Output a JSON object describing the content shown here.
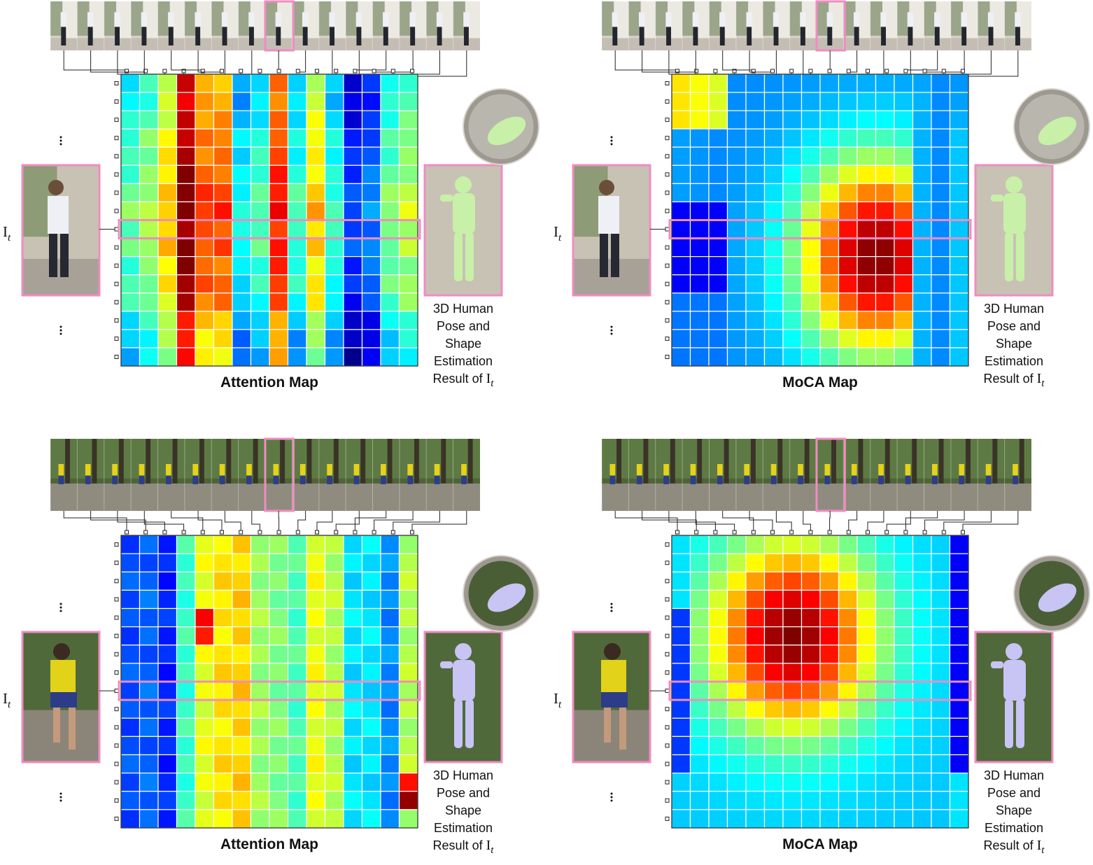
{
  "panels": [
    {
      "id": "top-left",
      "title": "Attention Map",
      "frame_label": "I",
      "frame_subscript": "t",
      "result_lines": [
        "3D Human",
        "Pose and",
        "Shape",
        "Estimation",
        "Result of"
      ],
      "result_tail": "I",
      "result_tail_sub": "t",
      "scene": "building",
      "mesh_color": "#c8f0a8",
      "highlight_row": 8,
      "highlight_frame": 8
    },
    {
      "id": "top-right",
      "title": "MoCA Map",
      "frame_label": "I",
      "frame_subscript": "t",
      "result_lines": [
        "3D Human",
        "Pose and",
        "Shape",
        "Estimation",
        "Result of"
      ],
      "result_tail": "I",
      "result_tail_sub": "t",
      "scene": "building",
      "mesh_color": "#c8f0a8",
      "highlight_row": 8,
      "highlight_frame": 8
    },
    {
      "id": "bottom-left",
      "title": "Attention Map",
      "frame_label": "I",
      "frame_subscript": "t",
      "result_lines": [
        "3D Human",
        "Pose and",
        "Shape",
        "Estimation",
        "Result of"
      ],
      "result_tail": "I",
      "result_tail_sub": "t",
      "scene": "forest",
      "mesh_color": "#c8c4f4",
      "highlight_row": 8,
      "highlight_frame": 8
    },
    {
      "id": "bottom-right",
      "title": "MoCA Map",
      "frame_label": "I",
      "frame_subscript": "t",
      "result_lines": [
        "3D Human",
        "Pose and",
        "Shape",
        "Estimation",
        "Result of"
      ],
      "result_tail": "I",
      "result_tail_sub": "t",
      "scene": "forest",
      "mesh_color": "#c8c4f4",
      "highlight_row": 8,
      "highlight_frame": 8
    }
  ],
  "chart_data": [
    {
      "type": "heatmap",
      "title": "Attention Map",
      "rows": 16,
      "cols": 16,
      "scale": "0-10 (jet colormap: 0 dark blue, 10 dark red)",
      "col_profile": [
        4,
        4.6,
        6,
        9.3,
        7.3,
        7.3,
        3.1,
        3.8,
        7.8,
        3.6,
        6,
        3.5,
        1.2,
        1.8,
        4.2,
        4.8
      ],
      "row_delta": [
        -0.3,
        -0.3,
        -0.1,
        0.3,
        0.3,
        0.5,
        0.8,
        1,
        0.6,
        0.8,
        0.4,
        0.5,
        0.2,
        -0.5,
        -0.8,
        -0.9
      ]
    },
    {
      "type": "heatmap",
      "title": "MoCA Map",
      "rows": 16,
      "cols": 16,
      "center_row": 9.5,
      "center_col": 10.5,
      "description": "radial red blob centred on the current frame row, blue in far columns"
    },
    {
      "type": "heatmap",
      "title": "Attention Map",
      "rows": 16,
      "cols": 16,
      "col_profile": [
        2,
        2.2,
        1.6,
        4.3,
        6,
        6.5,
        6.7,
        5.3,
        5,
        4.5,
        6.1,
        5.5,
        3.5,
        3.5,
        2.6,
        5.5
      ],
      "hot_spots": [
        {
          "row": 4,
          "col": 4,
          "value": 8.8
        },
        {
          "row": 5,
          "col": 4,
          "value": 8.5
        },
        {
          "row": 14,
          "col": 15,
          "value": 9.8
        },
        {
          "row": 13,
          "col": 15,
          "value": 8.6
        }
      ]
    },
    {
      "type": "heatmap",
      "title": "MoCA Map",
      "rows": 16,
      "cols": 16,
      "center_row": 5,
      "center_col": 6,
      "description": "radial red blob centred above the current frame, blue in last column"
    }
  ]
}
